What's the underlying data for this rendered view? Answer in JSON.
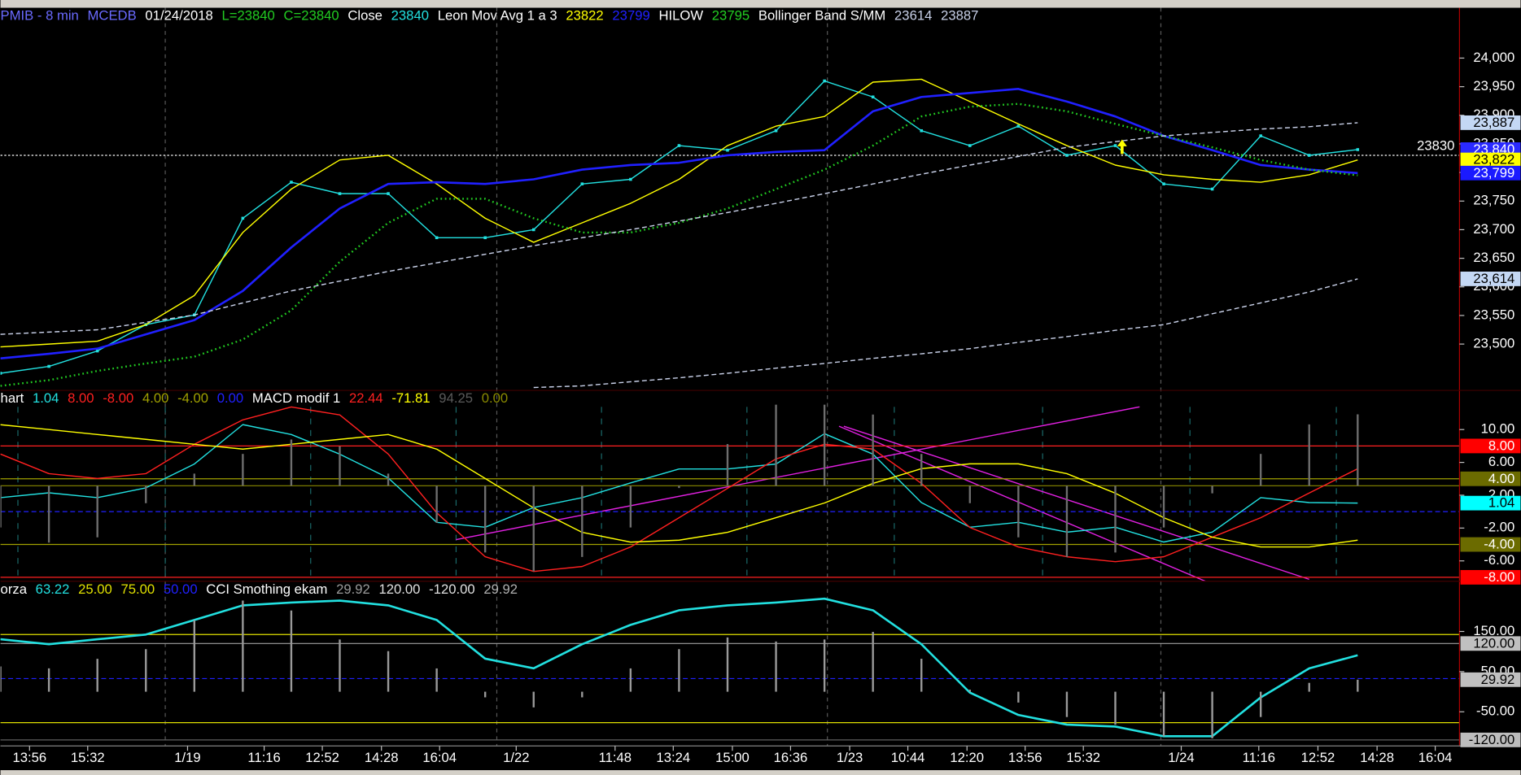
{
  "chart_data": [
    {
      "type": "line",
      "header_prefix": [
        {
          "text": "PMIB - 8 min",
          "color": "#6a6aff"
        },
        {
          "text": "MCEDB",
          "color": "#6a6aff"
        },
        {
          "text": "01/24/2018",
          "color": "#ffffff"
        },
        {
          "text": "L=23840",
          "color": "#22cc22"
        },
        {
          "text": "C=23840",
          "color": "#22cc22"
        }
      ],
      "x": [
        0,
        5,
        10,
        15,
        20,
        25,
        30,
        35,
        40,
        45,
        50,
        55,
        60,
        65,
        70,
        75,
        80,
        85,
        90,
        95,
        100,
        105,
        110,
        115,
        120,
        125,
        130,
        135,
        140
      ],
      "xlim": [
        0,
        150.5
      ],
      "ylim": [
        23419,
        24088
      ],
      "yticks": [
        {
          "value": 23500,
          "label": "23,500"
        },
        {
          "value": 23550,
          "label": "23,550"
        },
        {
          "value": 23600,
          "label": "23,600"
        },
        {
          "value": 23650,
          "label": "23,650"
        },
        {
          "value": 23700,
          "label": "23,700"
        },
        {
          "value": 23750,
          "label": "23,750"
        },
        {
          "value": 23800,
          "label": "23,800"
        },
        {
          "value": 23850,
          "label": "23,850"
        },
        {
          "value": 23900,
          "label": "23,900"
        },
        {
          "value": 23950,
          "label": "23,950"
        },
        {
          "value": 24000,
          "label": "24,000"
        }
      ],
      "reference": {
        "value": 23830
      },
      "groups": [
        {
          "name": "Close",
          "lines": [
            {
              "label": "23840",
              "color": "#22e0e0",
              "style": "solid",
              "dots": true,
              "values": [
                23449,
                23461,
                23488,
                23534,
                23551,
                23720,
                23783,
                23763,
                23763,
                23686,
                23686,
                23700,
                23780,
                23788,
                23847,
                23839,
                23873,
                23960,
                23932,
                23873,
                23847,
                23881,
                23830,
                23847,
                23780,
                23771,
                23864,
                23830,
                23840
              ]
            }
          ],
          "levels": []
        },
        {
          "name": "Leon Mov Avg 1 a 3",
          "lines": [
            {
              "label": "23822",
              "color": "#ffff00",
              "style": "solid",
              "values": [
                23495,
                23500,
                23505,
                23534,
                23585,
                23695,
                23771,
                23822,
                23830,
                23780,
                23720,
                23678,
                23712,
                23746,
                23788,
                23847,
                23881,
                23898,
                23958,
                23963,
                23924,
                23885,
                23847,
                23813,
                23796,
                23788,
                23783,
                23796,
                23822
              ]
            },
            {
              "label": "23799",
              "color": "#2020ff",
              "style": "thick",
              "values": [
                23475,
                23483,
                23492,
                23517,
                23542,
                23593,
                23669,
                23737,
                23780,
                23783,
                23780,
                23788,
                23805,
                23813,
                23817,
                23830,
                23836,
                23839,
                23907,
                23932,
                23939,
                23946,
                23924,
                23898,
                23864,
                23839,
                23813,
                23805,
                23799
              ]
            }
          ],
          "levels": []
        },
        {
          "name": "HILOW",
          "lines": [
            {
              "label": "23795",
              "color": "#22cc22",
              "style": "dotted",
              "values": [
                23427,
                23437,
                23453,
                23466,
                23478,
                23508,
                23559,
                23644,
                23712,
                23754,
                23754,
                23720,
                23695,
                23695,
                23712,
                23737,
                23771,
                23805,
                23847,
                23898,
                23915,
                23920,
                23907,
                23885,
                23864,
                23844,
                23822,
                23805,
                23795
              ]
            }
          ],
          "levels": []
        },
        {
          "name": "Bollinger Band S/MM",
          "lines": [
            {
              "label": "23614",
              "color": "#c8d0e8",
              "style": "dashed",
              "values": [
                null,
                null,
                null,
                null,
                null,
                null,
                null,
                null,
                null,
                null,
                null,
                23424,
                23427,
                23434,
                23441,
                23449,
                23458,
                23466,
                23475,
                23483,
                23492,
                23503,
                23513,
                23524,
                23534,
                23553,
                23572,
                23591,
                23614
              ]
            },
            {
              "label": "23887",
              "color": "#c8d0e8",
              "style": "dashed",
              "values": [
                23517,
                23521,
                23525,
                23538,
                23551,
                23572,
                23593,
                23610,
                23627,
                23642,
                23657,
                23672,
                23686,
                23700,
                23715,
                23730,
                23746,
                23763,
                23780,
                23797,
                23813,
                23828,
                23844,
                23854,
                23864,
                23870,
                23876,
                23880,
                23887
              ]
            }
          ],
          "levels": []
        }
      ],
      "markers": [
        {
          "value": 23887,
          "label": "23,887",
          "bg": "#c4d8f4",
          "fg": "#000000"
        },
        {
          "value": 23840,
          "label": "23,840",
          "bg": "#2a2aff",
          "fg": "#ffffff"
        },
        {
          "value": 23822,
          "label": "23,822",
          "bg": "#ffff00",
          "fg": "#000000"
        },
        {
          "value": 23799,
          "label": "23,799",
          "bg": "#1a1aff",
          "fg": "#ffffff"
        },
        {
          "value": 23614,
          "label": "23,614",
          "bg": "#c4d8f4",
          "fg": "#000000"
        }
      ]
    },
    {
      "type": "line",
      "header_prefix": [],
      "x": [
        0,
        5,
        10,
        15,
        20,
        25,
        30,
        35,
        40,
        45,
        50,
        55,
        60,
        65,
        70,
        75,
        80,
        85,
        90,
        95,
        100,
        105,
        110,
        115,
        120,
        125,
        130,
        135,
        140
      ],
      "xlim": [
        0,
        150.5
      ],
      "ylim": [
        -8.48,
        14.77
      ],
      "y2lim": [
        -126.0,
        125.8
      ],
      "yticks": [
        {
          "value": 10,
          "label": "10.00"
        },
        {
          "value": 6,
          "label": "6.00"
        },
        {
          "value": 2,
          "label": "2.00"
        },
        {
          "value": -2,
          "label": "-2.00"
        },
        {
          "value": -6,
          "label": "-6.00"
        }
      ],
      "groups": [
        {
          "name": "hart",
          "lines": [
            {
              "label": "1.04",
              "color": "#22e0e0",
              "style": "solid",
              "values": [
                1.7,
                2.3,
                1.7,
                2.9,
                5.8,
                10.6,
                9.4,
                7.0,
                4.1,
                -1.3,
                -1.9,
                0.5,
                1.7,
                3.5,
                5.2,
                5.2,
                5.8,
                9.5,
                7.0,
                1.1,
                -1.9,
                -1.3,
                -2.5,
                -1.9,
                -3.7,
                -2.5,
                1.7,
                1.1,
                1.04
              ]
            }
          ],
          "levels": [
            {
              "value": 8,
              "label": "8.00",
              "color": "#ff2020",
              "style": "solid"
            },
            {
              "value": -8,
              "label": "-8.00",
              "color": "#ff2020",
              "style": "solid"
            },
            {
              "value": 4,
              "label": "4.00",
              "color": "#a0a000",
              "style": "solid"
            },
            {
              "value": -4,
              "label": "-4.00",
              "color": "#a0a000",
              "style": "solid"
            },
            {
              "value": 0,
              "label": "0.00",
              "color": "#2020ff",
              "style": "dashed"
            }
          ]
        },
        {
          "name": "MACD modif 1",
          "lines": [
            {
              "label": "22.44",
              "color": "#ff2020",
              "style": "solid",
              "axis": "y2",
              "values": [
                41.8,
                16.0,
                9.6,
                16.0,
                54.7,
                87.0,
                103.9,
                93.5,
                41.8,
                -35.6,
                -93.7,
                -113.1,
                -106.6,
                -80.8,
                -42.1,
                -3.4,
                35.4,
                54.7,
                48.3,
                3.1,
                -55.0,
                -80.8,
                -93.7,
                -100.2,
                -93.7,
                -67.9,
                -42.1,
                -9.6,
                22.44
              ]
            },
            {
              "label": "-71.81",
              "color": "#ffff00",
              "style": "solid",
              "axis": "y2",
              "values": [
                80.6,
                74.1,
                67.7,
                61.2,
                54.7,
                48.3,
                54.7,
                61.2,
                67.7,
                48.3,
                9.6,
                -29.2,
                -61.5,
                -74.4,
                -71.8,
                -61.5,
                -42.1,
                -22.7,
                3.1,
                22.5,
                28.9,
                28.9,
                16.0,
                -9.8,
                -42.1,
                -67.9,
                -80.8,
                -80.8,
                -71.81
              ]
            },
            {
              "label": "94.25",
              "color": "#6e6e6e",
              "style": "hist",
              "axis": "y2",
              "values": [
                -55,
                -75,
                -68,
                -23,
                16,
                42,
                61,
                52,
                16,
                -49,
                -88,
                -113,
                -94,
                -55,
                -3,
                55,
                107,
                107,
                94,
                42,
                -23,
                -68,
                -94,
                -88,
                -55,
                -10,
                42,
                81,
                94.25
              ]
            }
          ],
          "levels": [
            {
              "value": 0,
              "label": "0.00",
              "color": "#8a8a00",
              "style": "solid",
              "axis": "y2"
            }
          ]
        }
      ],
      "markers": [
        {
          "value": 8,
          "label": "8.00",
          "bg": "#ff0000",
          "fg": "#ffffff"
        },
        {
          "value": 4,
          "label": "4.00",
          "bg": "#6b6b00",
          "fg": "#ffffff"
        },
        {
          "value": 1.04,
          "label": "1.04",
          "bg": "#00ffff",
          "fg": "#000000"
        },
        {
          "value": -4,
          "label": "-4.00",
          "bg": "#6b6b00",
          "fg": "#ffffff"
        },
        {
          "value": -8,
          "label": "-8.00",
          "bg": "#ff0000",
          "fg": "#ffffff"
        }
      ]
    },
    {
      "type": "line",
      "header_prefix": [],
      "x": [
        0,
        5,
        10,
        15,
        20,
        25,
        30,
        35,
        40,
        45,
        50,
        55,
        60,
        65,
        70,
        75,
        80,
        85,
        90,
        95,
        100,
        105,
        110,
        115,
        120,
        125,
        130,
        135,
        140
      ],
      "xlim": [
        0,
        150.5
      ],
      "ylim": [
        -135,
        275
      ],
      "y2lim": [
        11.8,
        105.2
      ],
      "yticks": [
        {
          "value": 150,
          "label": "150.00"
        },
        {
          "value": 50,
          "label": "50.00"
        },
        {
          "value": -50,
          "label": "-50.00"
        }
      ],
      "xticks": [
        {
          "value": 3.0,
          "label": "13:56"
        },
        {
          "value": 9.0,
          "label": "15:32"
        },
        {
          "value": 19.3,
          "label": "1/19"
        },
        {
          "value": 27.2,
          "label": "11:16"
        },
        {
          "value": 33.2,
          "label": "12:52"
        },
        {
          "value": 39.3,
          "label": "14:28"
        },
        {
          "value": 45.3,
          "label": "16:04"
        },
        {
          "value": 53.2,
          "label": "1/22"
        },
        {
          "value": 63.4,
          "label": "11:48"
        },
        {
          "value": 69.4,
          "label": "13:24"
        },
        {
          "value": 75.5,
          "label": "15:00"
        },
        {
          "value": 81.5,
          "label": "16:36"
        },
        {
          "value": 87.6,
          "label": "1/23"
        },
        {
          "value": 93.6,
          "label": "10:44"
        },
        {
          "value": 99.7,
          "label": "12:20"
        },
        {
          "value": 105.7,
          "label": "13:56"
        },
        {
          "value": 111.7,
          "label": "15:32"
        },
        {
          "value": 121.8,
          "label": "1/24"
        },
        {
          "value": 129.8,
          "label": "11:16"
        },
        {
          "value": 135.9,
          "label": "12:52"
        },
        {
          "value": 142.0,
          "label": "14:28"
        },
        {
          "value": 148.0,
          "label": "16:04"
        }
      ],
      "groups": [
        {
          "name": "orza",
          "lines": [
            {
              "label": "63.22",
              "color": "#22e0e0",
              "style": "thick",
              "axis": "y2",
              "values": [
                72.3,
                69.5,
                72.3,
                75,
                83.2,
                91.5,
                93.1,
                94.2,
                91.5,
                83.2,
                61.3,
                55.8,
                69.5,
                80.5,
                88.7,
                91.5,
                93.1,
                95.3,
                88.7,
                69.5,
                42.0,
                29.4,
                23.9,
                22.8,
                17.3,
                17.3,
                39.3,
                55.8,
                63.22
              ]
            }
          ],
          "levels": [
            {
              "value": 25,
              "label": "25.00",
              "color": "#e0e000",
              "style": "solid",
              "axis": "y2"
            },
            {
              "value": 75,
              "label": "75.00",
              "color": "#e0e000",
              "style": "solid",
              "axis": "y2"
            },
            {
              "value": 50,
              "label": "50.00",
              "color": "#2020ff",
              "style": "dashed",
              "axis": "y2"
            }
          ]
        },
        {
          "name": "CCI Smothing ekam",
          "lines": [
            {
              "label": "29.92",
              "color": "#9a9a9a",
              "style": "hist",
              "values": [
                63,
                58,
                82,
                106,
                178,
                227,
                202,
                130,
                101,
                58,
                -14,
                -39,
                -14,
                58,
                106,
                135,
                125,
                130,
                149,
                82,
                5,
                -27,
                -63,
                -82,
                -111,
                -116,
                -63,
                22,
                29.92
              ]
            }
          ],
          "levels": [
            {
              "value": 120,
              "label": "120.00",
              "color": "#a0a0a0",
              "style": "solid"
            },
            {
              "value": -120,
              "label": "-120.00",
              "color": "#606060",
              "style": "solid"
            }
          ],
          "trailing": [
            "29.92"
          ]
        }
      ],
      "markers": [
        {
          "value": 120,
          "label": "120.00",
          "bg": "#c0c0c0",
          "fg": "#000000"
        },
        {
          "value": 29.92,
          "label": "29.92",
          "bg": "#c0c0c0",
          "fg": "#000000"
        },
        {
          "value": -120,
          "label": "-120.00",
          "bg": "#bdbdbd",
          "fg": "#000000"
        }
      ]
    }
  ]
}
